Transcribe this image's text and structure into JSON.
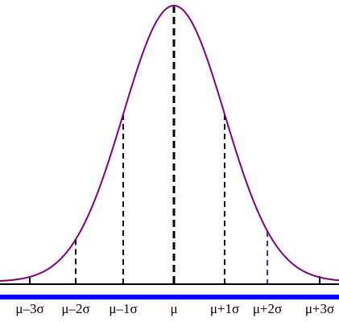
{
  "labels": [
    "μ–3σ",
    "μ–2σ",
    "μ–1σ",
    "μ",
    "μ+1σ",
    "μ+2σ",
    "μ+3σ"
  ]
}
